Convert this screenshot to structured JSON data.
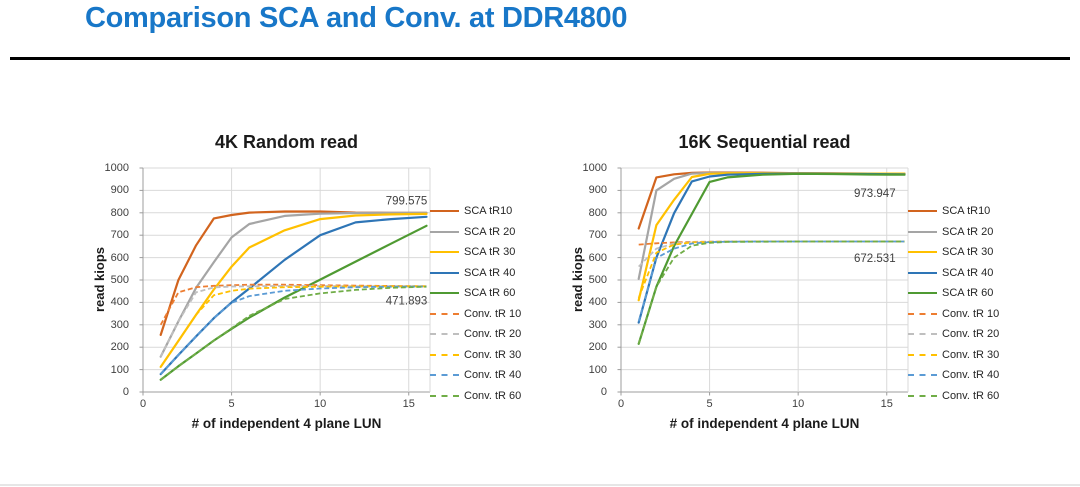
{
  "slide": {
    "title": "Comparison SCA and Conv. at DDR4800",
    "accent_color": "#1877C8"
  },
  "chart_data": [
    {
      "type": "line",
      "title": "4K Random read",
      "xlabel": "# of independent 4 plane LUN",
      "ylabel": "read kiops",
      "xlim": [
        0,
        16.2
      ],
      "ylim": [
        0,
        1000
      ],
      "x_ticks": [
        0,
        5,
        10,
        15
      ],
      "y_ticks": [
        0,
        100,
        200,
        300,
        400,
        500,
        600,
        700,
        800,
        900,
        1000
      ],
      "grid": true,
      "legend_position": "right",
      "x": [
        1,
        2,
        3,
        4,
        5,
        6,
        8,
        10,
        12,
        14,
        16
      ],
      "series": [
        {
          "name": "SCA tR10",
          "style": "solid",
          "color": "#D2641E",
          "values": [
            255,
            500,
            655,
            775,
            790,
            801,
            806,
            806,
            801,
            800,
            799.575
          ]
        },
        {
          "name": "SCA tR 20",
          "style": "solid",
          "color": "#A5A5A5",
          "values": [
            158,
            315,
            465,
            580,
            690,
            750,
            786,
            796,
            799,
            800,
            800
          ]
        },
        {
          "name": "SCA tR 30",
          "style": "solid",
          "color": "#FFC000",
          "values": [
            112,
            228,
            345,
            458,
            560,
            645,
            722,
            772,
            788,
            793,
            795
          ]
        },
        {
          "name": "SCA tR 40",
          "style": "solid",
          "color": "#2E75B6",
          "values": [
            80,
            165,
            248,
            330,
            400,
            462,
            590,
            700,
            757,
            772,
            782
          ]
        },
        {
          "name": "SCA tR 60",
          "style": "solid",
          "color": "#4F9A32",
          "values": [
            55,
            115,
            172,
            230,
            282,
            332,
            422,
            502,
            582,
            662,
            742
          ]
        },
        {
          "name": "Conv. tR 10",
          "style": "dashed",
          "color": "#ED7D31",
          "values": [
            300,
            445,
            468,
            474,
            477,
            479,
            479,
            477,
            475,
            473,
            471.893
          ]
        },
        {
          "name": "Conv. tR 20",
          "style": "dashed",
          "color": "#BFBFBF",
          "values": [
            158,
            315,
            445,
            467,
            471,
            472,
            473,
            473,
            472,
            472,
            472
          ]
        },
        {
          "name": "Conv. tR 30",
          "style": "dashed",
          "color": "#FFC000",
          "values": [
            112,
            228,
            345,
            432,
            452,
            461,
            468,
            470,
            471,
            472,
            472
          ]
        },
        {
          "name": "Conv. tR 40",
          "style": "dashed",
          "color": "#5B9BD5",
          "values": [
            80,
            165,
            248,
            330,
            398,
            428,
            452,
            462,
            468,
            470,
            471
          ]
        },
        {
          "name": "Conv. tR 60",
          "style": "dashed",
          "color": "#70AD47",
          "values": [
            55,
            115,
            172,
            230,
            285,
            340,
            415,
            440,
            456,
            465,
            470
          ]
        }
      ],
      "annotations": [
        {
          "text": "799.575",
          "x": 16.05,
          "y": 856
        },
        {
          "text": "471.893",
          "x": 16.05,
          "y": 408
        }
      ]
    },
    {
      "type": "line",
      "title": "16K Sequential read",
      "xlabel": "# of independent 4 plane LUN",
      "ylabel": "read kiops",
      "xlim": [
        0,
        16.2
      ],
      "ylim": [
        0,
        1000
      ],
      "x_ticks": [
        0,
        5,
        10,
        15
      ],
      "y_ticks": [
        0,
        100,
        200,
        300,
        400,
        500,
        600,
        700,
        800,
        900,
        1000
      ],
      "grid": true,
      "legend_position": "right",
      "x": [
        1,
        2,
        3,
        4,
        5,
        6,
        8,
        10,
        12,
        14,
        16
      ],
      "series": [
        {
          "name": "SCA tR10",
          "style": "solid",
          "color": "#D2641E",
          "values": [
            730,
            958,
            972,
            978,
            980,
            980,
            979,
            977,
            976,
            975,
            973.947
          ]
        },
        {
          "name": "SCA tR 20",
          "style": "solid",
          "color": "#A5A5A5",
          "values": [
            505,
            900,
            952,
            975,
            978,
            978,
            977,
            976,
            975,
            975,
            975
          ]
        },
        {
          "name": "SCA tR 30",
          "style": "solid",
          "color": "#FFC000",
          "values": [
            410,
            745,
            858,
            960,
            974,
            977,
            977,
            976,
            975,
            975,
            975
          ]
        },
        {
          "name": "SCA tR 40",
          "style": "solid",
          "color": "#2E75B6",
          "values": [
            310,
            600,
            798,
            940,
            962,
            970,
            974,
            975,
            974,
            973,
            972
          ]
        },
        {
          "name": "SCA tR 60",
          "style": "solid",
          "color": "#4F9A32",
          "values": [
            215,
            470,
            652,
            795,
            938,
            958,
            970,
            974,
            973,
            971,
            970
          ]
        },
        {
          "name": "Conv. tR 10",
          "style": "dashed",
          "color": "#ED7D31",
          "values": [
            658,
            664,
            668,
            670,
            671,
            672,
            672,
            672,
            672,
            672,
            672.531
          ]
        },
        {
          "name": "Conv. tR 20",
          "style": "dashed",
          "color": "#BFBFBF",
          "values": [
            560,
            640,
            663,
            669,
            671,
            672,
            672,
            672,
            672,
            672,
            672
          ]
        },
        {
          "name": "Conv. tR 30",
          "style": "dashed",
          "color": "#FFC000",
          "values": [
            420,
            622,
            658,
            668,
            670,
            671,
            672,
            672,
            672,
            672,
            672
          ]
        },
        {
          "name": "Conv. tR 40",
          "style": "dashed",
          "color": "#5B9BD5",
          "values": [
            315,
            598,
            640,
            663,
            669,
            671,
            672,
            672,
            672,
            672,
            672
          ]
        },
        {
          "name": "Conv. tR 60",
          "style": "dashed",
          "color": "#70AD47",
          "values": [
            215,
            470,
            600,
            653,
            666,
            670,
            671,
            672,
            672,
            672,
            672
          ]
        }
      ],
      "annotations": [
        {
          "text": "973.947",
          "x": 15.5,
          "y": 888
        },
        {
          "text": "672.531",
          "x": 15.5,
          "y": 598
        }
      ]
    }
  ]
}
